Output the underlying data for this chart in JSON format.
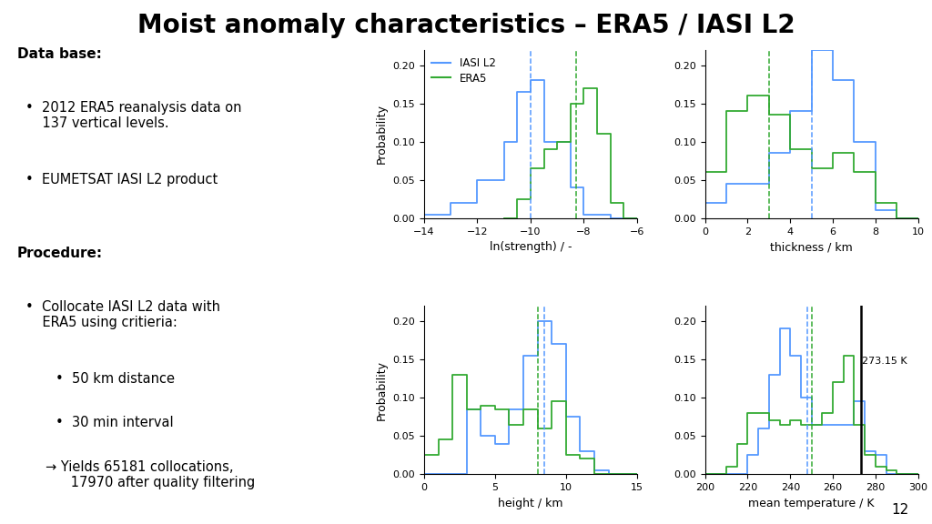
{
  "title": "Moist anomaly characteristics – ERA5 / IASI L2",
  "title_fontsize": 20,
  "title_fontweight": "bold",
  "background_color": "#ffffff",
  "footer_color": "#9bbfbf",
  "page_number": "12",
  "iasi_color": "#5599ff",
  "era5_color": "#33aa33",
  "black_color": "#000000",
  "plot1": {
    "xlabel": "ln(strength) / -",
    "xlim": [
      -14,
      -6
    ],
    "xticks": [
      -14,
      -12,
      -10,
      -8,
      -6
    ],
    "ylim": [
      0,
      0.22
    ],
    "yticks": [
      0.0,
      0.05,
      0.1,
      0.15,
      0.2
    ],
    "iasi_vline": -10.0,
    "era5_vline": -8.3,
    "iasi_bins": [
      -14,
      -13,
      -12,
      -11,
      -10.5,
      -10,
      -9.5,
      -9,
      -8.5,
      -8,
      -7.5,
      -7,
      -6.5,
      -6
    ],
    "iasi_hist": [
      0.005,
      0.02,
      0.05,
      0.1,
      0.165,
      0.18,
      0.1,
      0.1,
      0.04,
      0.005,
      0.005,
      0.0,
      0.0
    ],
    "era5_bins": [
      -11,
      -10.5,
      -10,
      -9.5,
      -9,
      -8.5,
      -8,
      -7.5,
      -7,
      -6.5,
      -6
    ],
    "era5_hist": [
      0.0,
      0.025,
      0.065,
      0.09,
      0.1,
      0.15,
      0.17,
      0.11,
      0.02,
      0.0
    ]
  },
  "plot2": {
    "xlabel": "thickness / km",
    "xlim": [
      0,
      10
    ],
    "xticks": [
      0,
      2,
      4,
      6,
      8,
      10
    ],
    "ylim": [
      0,
      0.22
    ],
    "yticks": [
      0.0,
      0.05,
      0.1,
      0.15,
      0.2
    ],
    "iasi_vline": 5.0,
    "era5_vline": 3.0,
    "iasi_bins": [
      0,
      1,
      2,
      3,
      4,
      5,
      6,
      7,
      8,
      9,
      10
    ],
    "iasi_hist": [
      0.02,
      0.045,
      0.045,
      0.085,
      0.14,
      0.22,
      0.18,
      0.1,
      0.01,
      0.0
    ],
    "era5_bins": [
      0,
      1,
      2,
      3,
      4,
      5,
      6,
      7,
      8,
      9,
      10
    ],
    "era5_hist": [
      0.06,
      0.14,
      0.16,
      0.135,
      0.09,
      0.065,
      0.085,
      0.06,
      0.02,
      0.0
    ]
  },
  "plot3": {
    "xlabel": "height / km",
    "xlim": [
      0,
      15
    ],
    "xticks": [
      0,
      5,
      10,
      15
    ],
    "ylim": [
      0,
      0.22
    ],
    "yticks": [
      0.0,
      0.05,
      0.1,
      0.15,
      0.2
    ],
    "iasi_vline": 8.5,
    "era5_vline": 8.0,
    "iasi_bins": [
      0,
      1,
      2,
      3,
      4,
      5,
      6,
      7,
      8,
      9,
      10,
      11,
      12,
      13,
      14,
      15
    ],
    "iasi_hist": [
      0.0,
      0.0,
      0.0,
      0.085,
      0.05,
      0.04,
      0.085,
      0.155,
      0.2,
      0.17,
      0.075,
      0.03,
      0.005,
      0.0,
      0.0
    ],
    "era5_bins": [
      0,
      1,
      2,
      3,
      4,
      5,
      6,
      7,
      8,
      9,
      10,
      11,
      12,
      13,
      14,
      15
    ],
    "era5_hist": [
      0.025,
      0.045,
      0.13,
      0.085,
      0.09,
      0.085,
      0.065,
      0.085,
      0.06,
      0.095,
      0.025,
      0.02,
      0.0,
      0.0,
      0.0
    ]
  },
  "plot4": {
    "xlabel": "mean temperature / K",
    "xlim": [
      200,
      300
    ],
    "xticks": [
      200,
      220,
      240,
      260,
      280,
      300
    ],
    "ylim": [
      0,
      0.22
    ],
    "yticks": [
      0.0,
      0.05,
      0.1,
      0.15,
      0.2
    ],
    "iasi_vline": 248.0,
    "era5_vline": 250.0,
    "black_vline": 273.15,
    "black_vline_label": "273.15 K",
    "iasi_bins": [
      200,
      210,
      220,
      225,
      230,
      235,
      240,
      245,
      250,
      255,
      260,
      265,
      270,
      275,
      280,
      285,
      290,
      300
    ],
    "iasi_hist": [
      0.0,
      0.0,
      0.025,
      0.06,
      0.13,
      0.19,
      0.155,
      0.1,
      0.065,
      0.065,
      0.065,
      0.065,
      0.095,
      0.03,
      0.025,
      0.0,
      0.0
    ],
    "era5_bins": [
      200,
      210,
      215,
      220,
      225,
      230,
      235,
      240,
      245,
      250,
      255,
      260,
      265,
      270,
      275,
      280,
      285,
      290,
      300
    ],
    "era5_hist": [
      0.0,
      0.01,
      0.04,
      0.08,
      0.08,
      0.07,
      0.065,
      0.07,
      0.065,
      0.065,
      0.08,
      0.12,
      0.155,
      0.065,
      0.025,
      0.01,
      0.005,
      0.0
    ]
  }
}
